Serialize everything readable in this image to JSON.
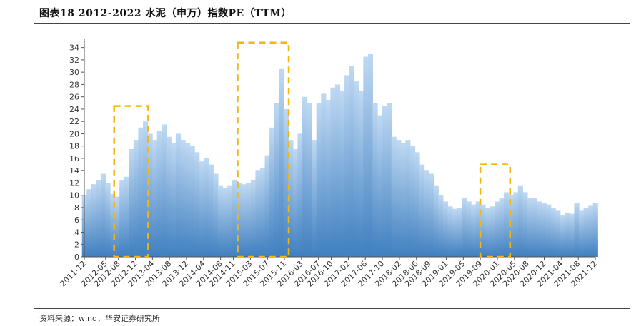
{
  "header": {
    "title": "图表18 2012-2022 水泥（申万）指数PE（TTM）"
  },
  "footer": {
    "source": "资料来源：wind，华安证券研究所"
  },
  "colors": {
    "fill_top": "#bfd9f3",
    "fill_bottom": "#3f7fc0",
    "highlight_box": "#f5b50a",
    "axis": "#555555"
  },
  "chart_data": {
    "type": "area",
    "title": "",
    "xlabel": "",
    "ylabel": "",
    "ylim": [
      0,
      35
    ],
    "yticks": [
      0,
      2,
      4,
      6,
      8,
      10,
      12,
      14,
      16,
      18,
      20,
      22,
      24,
      26,
      28,
      30,
      32,
      34
    ],
    "x_tick_labels": [
      "2011-12",
      "2012-05",
      "2012-08",
      "2012-12",
      "2013-04",
      "2013-08",
      "2013-12",
      "2014-04",
      "2014-08",
      "2014-11",
      "2015-03",
      "2015-07",
      "2015-11",
      "2016-03",
      "2016-07",
      "2016-10",
      "2017-02",
      "2017-06",
      "2017-10",
      "2018-02",
      "2018-06",
      "2018-09",
      "2019-01",
      "2019-05",
      "2019-09",
      "2020-01",
      "2020-05",
      "2020-08",
      "2020-12",
      "2021-04",
      "2021-08",
      "2021-12"
    ],
    "grid": false,
    "legend": "none",
    "series": [
      {
        "values": [
          10.0,
          11.0,
          11.8,
          12.5,
          13.5,
          12.0,
          10.2,
          9.8,
          12.5,
          13.0,
          17.5,
          19.0,
          21.0,
          22.0,
          20.0,
          19.0,
          20.5,
          21.5,
          19.5,
          18.5,
          20.0,
          19.0,
          18.5,
          18.0,
          17.0,
          15.5,
          16.0,
          15.0,
          13.5,
          11.5,
          11.2,
          11.5,
          12.5,
          12.0,
          11.8,
          12.0,
          12.5,
          14.0,
          14.5,
          16.5,
          21.0,
          25.0,
          30.5,
          24.0,
          19.0,
          17.5,
          20.0,
          26.0,
          25.0,
          19.0,
          25.0,
          26.5,
          25.5,
          27.5,
          28.0,
          27.0,
          29.5,
          31.0,
          28.5,
          27.0,
          32.5,
          33.0,
          25.0,
          23.0,
          24.5,
          25.0,
          19.5,
          19.0,
          18.5,
          19.0,
          18.0,
          17.0,
          15.0,
          14.0,
          13.5,
          11.5,
          10.0,
          9.0,
          8.2,
          7.8,
          8.0,
          9.5,
          9.0,
          8.5,
          9.0,
          8.5,
          8.0,
          8.2,
          9.0,
          9.5,
          10.5,
          10.0,
          10.5,
          11.5,
          10.5,
          9.5,
          9.5,
          9.0,
          8.8,
          8.5,
          8.0,
          7.5,
          6.8,
          7.2,
          7.0,
          8.8,
          7.5,
          8.0,
          8.3,
          8.7
        ]
      }
    ],
    "highlight_boxes": [
      {
        "x_start": "2012-07",
        "x_end": "2013-03",
        "y_top": 24.5
      },
      {
        "x_start": "2014-12",
        "x_end": "2015-12",
        "y_top": 34.8
      },
      {
        "x_start": "2019-09",
        "x_end": "2020-04",
        "y_top": 15.0
      }
    ]
  }
}
